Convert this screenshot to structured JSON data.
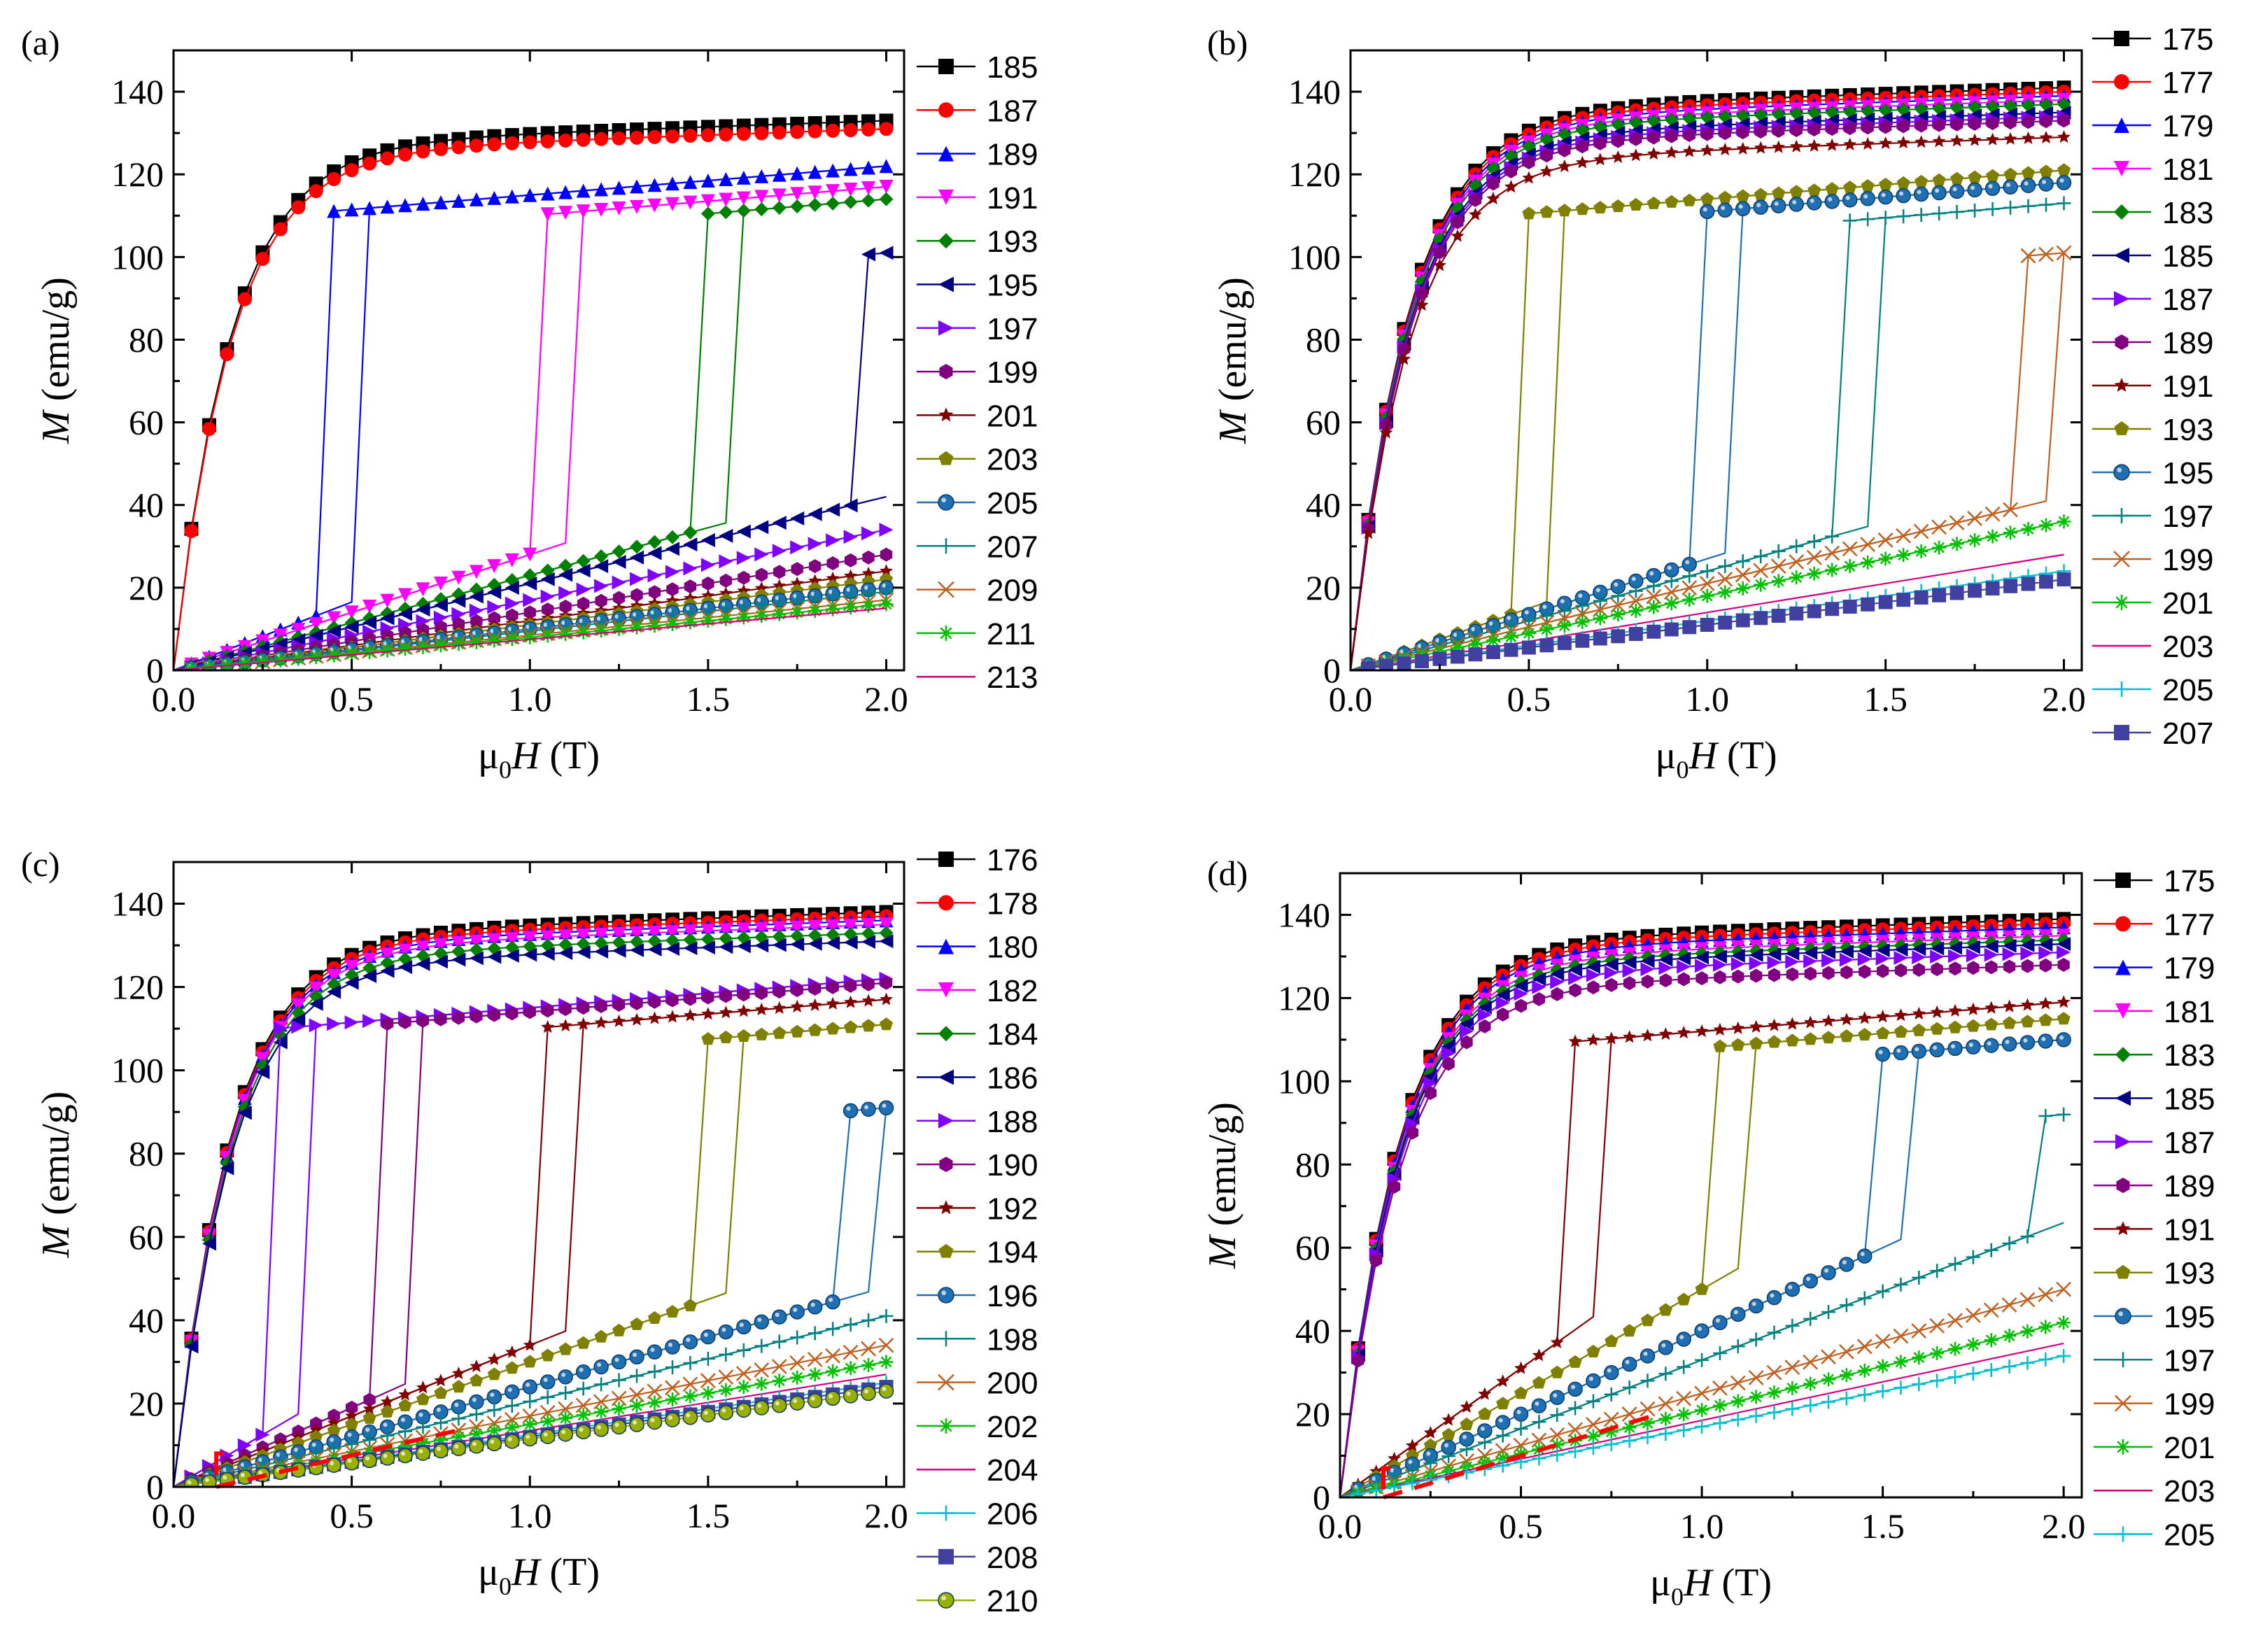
{
  "figure": {
    "colors": {
      "axis": "#000000",
      "annotation_dash": "#ff0000"
    }
  },
  "chart_data": [
    {
      "panel": "(a)",
      "type": "line",
      "xlabel_pre": "μ",
      "xlabel_sub": "0",
      "xlabel_var": "H",
      "xlabel_unit": " (T)",
      "ylabel_var": "M",
      "ylabel_unit": " (emu/g)",
      "xlim": [
        0,
        2.05
      ],
      "ylim": [
        0,
        150
      ],
      "xticks": [
        0,
        0.5,
        1.0,
        1.5,
        2.0
      ],
      "xtick_labels": [
        "0.0",
        "0.5",
        "1.0",
        "1.5",
        "2.0"
      ],
      "yticks": [
        0,
        20,
        40,
        60,
        80,
        100,
        120,
        140
      ],
      "ytick_labels": [
        "0",
        "20",
        "40",
        "60",
        "80",
        "100",
        "120",
        "140"
      ],
      "legend": [
        "185",
        "187",
        "189",
        "191",
        "193",
        "195",
        "197",
        "199",
        "201",
        "203",
        "205",
        "207",
        "209",
        "211",
        "213"
      ],
      "legend_placement": "right",
      "series": [
        {
          "name": "185",
          "marker": "square",
          "color": "#000000",
          "kind": "fm",
          "Msat": 127
        },
        {
          "name": "187",
          "marker": "circle",
          "color": "#ff0000",
          "kind": "fm",
          "Msat": 125
        },
        {
          "name": "189",
          "marker": "triangle-up",
          "color": "#0000ff",
          "kind": "trans",
          "Hc": 0.45,
          "slope": 33,
          "M2": 122
        },
        {
          "name": "191",
          "marker": "triangle-down",
          "color": "#ff00ff",
          "kind": "trans",
          "Hc": 1.05,
          "slope": 28,
          "M2": 117
        },
        {
          "name": "193",
          "marker": "diamond",
          "color": "#008000",
          "kind": "trans",
          "Hc": 1.5,
          "slope": 23,
          "M2": 114
        },
        {
          "name": "195",
          "marker": "triangle-left",
          "color": "#000080",
          "kind": "trans",
          "Hc": 1.92,
          "slope": 21,
          "M2": 101
        },
        {
          "name": "197",
          "marker": "triangle-right",
          "color": "#8000ff",
          "kind": "pm",
          "slope": 17
        },
        {
          "name": "199",
          "marker": "hexagon",
          "color": "#800080",
          "kind": "pm",
          "slope": 14
        },
        {
          "name": "201",
          "marker": "star",
          "color": "#800000",
          "kind": "pm",
          "slope": 12
        },
        {
          "name": "203",
          "marker": "pentagon",
          "color": "#808000",
          "kind": "pm",
          "slope": 11
        },
        {
          "name": "205",
          "marker": "ball",
          "color": "#1f6fb2",
          "kind": "pm",
          "slope": 10
        },
        {
          "name": "207",
          "marker": "plus",
          "color": "#008080",
          "kind": "pm",
          "slope": 9.5
        },
        {
          "name": "209",
          "marker": "cross",
          "color": "#c06020",
          "kind": "pm",
          "slope": 8.5
        },
        {
          "name": "211",
          "marker": "asterisk",
          "color": "#00c000",
          "kind": "pm",
          "slope": 8
        },
        {
          "name": "213",
          "marker": "dash",
          "color": "#d00080",
          "kind": "pm",
          "slope": 7.5
        }
      ]
    },
    {
      "panel": "(b)",
      "type": "line",
      "xlabel_pre": "μ",
      "xlabel_sub": "0",
      "xlabel_var": "H",
      "xlabel_unit": " (T)",
      "ylabel_var": "M",
      "ylabel_unit": " (emu/g)",
      "xlim": [
        0,
        2.05
      ],
      "ylim": [
        0,
        150
      ],
      "xticks": [
        0,
        0.5,
        1.0,
        1.5,
        2.0
      ],
      "xtick_labels": [
        "0.0",
        "0.5",
        "1.0",
        "1.5",
        "2.0"
      ],
      "yticks": [
        0,
        20,
        40,
        60,
        80,
        100,
        120,
        140
      ],
      "ytick_labels": [
        "0",
        "20",
        "40",
        "60",
        "80",
        "100",
        "120",
        "140"
      ],
      "legend": [
        "175",
        "177",
        "179",
        "181",
        "183",
        "185",
        "187",
        "189",
        "191",
        "193",
        "195",
        "197",
        "199",
        "201",
        "203",
        "205",
        "207"
      ],
      "legend_placement": "right",
      "series": [
        {
          "name": "175",
          "marker": "square",
          "color": "#000000",
          "kind": "fm",
          "Msat": 135
        },
        {
          "name": "177",
          "marker": "circle",
          "color": "#ff0000",
          "kind": "fm",
          "Msat": 134
        },
        {
          "name": "179",
          "marker": "triangle-up",
          "color": "#0000ff",
          "kind": "fm",
          "Msat": 133
        },
        {
          "name": "181",
          "marker": "triangle-down",
          "color": "#ff00ff",
          "kind": "fm",
          "Msat": 132
        },
        {
          "name": "183",
          "marker": "diamond",
          "color": "#008000",
          "kind": "fm",
          "Msat": 131
        },
        {
          "name": "185",
          "marker": "triangle-left",
          "color": "#000080",
          "kind": "fm",
          "Msat": 129
        },
        {
          "name": "187",
          "marker": "triangle-right",
          "color": "#8000ff",
          "kind": "fm",
          "Msat": 128
        },
        {
          "name": "189",
          "marker": "hexagon",
          "color": "#800080",
          "kind": "fm",
          "Msat": 127
        },
        {
          "name": "191",
          "marker": "star",
          "color": "#800000",
          "kind": "fm",
          "Msat": 123
        },
        {
          "name": "193",
          "marker": "pentagon",
          "color": "#808000",
          "kind": "trans",
          "Hc": 0.5,
          "slope": 30,
          "M2": 121
        },
        {
          "name": "195",
          "marker": "ball",
          "color": "#1f6fb2",
          "kind": "trans",
          "Hc": 0.97,
          "slope": 27,
          "M2": 118
        },
        {
          "name": "197",
          "marker": "plus",
          "color": "#008080",
          "kind": "trans",
          "Hc": 1.4,
          "slope": 24,
          "M2": 113
        },
        {
          "name": "199",
          "marker": "cross",
          "color": "#c06020",
          "kind": "trans",
          "Hc": 1.87,
          "slope": 21,
          "M2": 101
        },
        {
          "name": "201",
          "marker": "asterisk",
          "color": "#00c000",
          "kind": "pm",
          "slope": 18
        },
        {
          "name": "203",
          "marker": "dash",
          "color": "#d00080",
          "kind": "pm",
          "slope": 14
        },
        {
          "name": "205",
          "marker": "plus",
          "color": "#00bfd0",
          "kind": "pm",
          "slope": 12
        },
        {
          "name": "207",
          "marker": "square",
          "color": "#4040a0",
          "kind": "pm",
          "slope": 11
        }
      ]
    },
    {
      "panel": "(c)",
      "type": "line",
      "xlabel_pre": "μ",
      "xlabel_sub": "0",
      "xlabel_var": "H",
      "xlabel_unit": " (T)",
      "ylabel_var": "M",
      "ylabel_unit": " (emu/g)",
      "xlim": [
        0,
        2.05
      ],
      "ylim": [
        0,
        150
      ],
      "xticks": [
        0,
        0.5,
        1.0,
        1.5,
        2.0
      ],
      "xtick_labels": [
        "0.0",
        "0.5",
        "1.0",
        "1.5",
        "2.0"
      ],
      "yticks": [
        0,
        20,
        40,
        60,
        80,
        100,
        120,
        140
      ],
      "ytick_labels": [
        "0",
        "20",
        "40",
        "60",
        "80",
        "100",
        "120",
        "140"
      ],
      "legend": [
        "176",
        "178",
        "180",
        "182",
        "184",
        "186",
        "188",
        "190",
        "192",
        "194",
        "196",
        "198",
        "200",
        "202",
        "204",
        "206",
        "208",
        "210"
      ],
      "legend_placement": "right",
      "annotation": {
        "dashed_line_from": [
          0.12,
          0
        ],
        "dashed_line_to": [
          0.82,
          14
        ],
        "bracket_x": 0.12,
        "bracket_y": 8
      },
      "series": [
        {
          "name": "176",
          "marker": "square",
          "color": "#000000",
          "kind": "fm",
          "Msat": 132
        },
        {
          "name": "178",
          "marker": "circle",
          "color": "#ff0000",
          "kind": "fm",
          "Msat": 131
        },
        {
          "name": "180",
          "marker": "triangle-up",
          "color": "#0000ff",
          "kind": "fm",
          "Msat": 130
        },
        {
          "name": "182",
          "marker": "triangle-down",
          "color": "#ff00ff",
          "kind": "fm",
          "Msat": 129
        },
        {
          "name": "184",
          "marker": "diamond",
          "color": "#008000",
          "kind": "fm",
          "Msat": 127
        },
        {
          "name": "186",
          "marker": "triangle-left",
          "color": "#000080",
          "kind": "fm",
          "Msat": 125
        },
        {
          "name": "188",
          "marker": "triangle-right",
          "color": "#8000ff",
          "kind": "trans",
          "Hc": 0.28,
          "slope": 50,
          "M2": 122
        },
        {
          "name": "190",
          "marker": "hexagon",
          "color": "#800080",
          "kind": "trans",
          "Hc": 0.6,
          "slope": 38,
          "M2": 121
        },
        {
          "name": "192",
          "marker": "star",
          "color": "#800000",
          "kind": "trans",
          "Hc": 1.05,
          "slope": 34,
          "M2": 117
        },
        {
          "name": "194",
          "marker": "pentagon",
          "color": "#808000",
          "kind": "trans",
          "Hc": 1.47,
          "slope": 30,
          "M2": 111
        },
        {
          "name": "196",
          "marker": "ball",
          "color": "#1f6fb2",
          "kind": "trans",
          "Hc": 1.9,
          "slope": 24,
          "M2": 91
        },
        {
          "name": "198",
          "marker": "plus",
          "color": "#008080",
          "kind": "pm",
          "slope": 20.5
        },
        {
          "name": "200",
          "marker": "cross",
          "color": "#c06020",
          "kind": "pm",
          "slope": 17
        },
        {
          "name": "202",
          "marker": "asterisk",
          "color": "#00c000",
          "kind": "pm",
          "slope": 15
        },
        {
          "name": "204",
          "marker": "dash",
          "color": "#d00080",
          "kind": "pm",
          "slope": 13.5
        },
        {
          "name": "206",
          "marker": "plus",
          "color": "#00bfd0",
          "kind": "pm",
          "slope": 12.5
        },
        {
          "name": "208",
          "marker": "square",
          "color": "#4040a0",
          "kind": "pm",
          "slope": 12
        },
        {
          "name": "210",
          "marker": "ball",
          "color": "#9ab000",
          "kind": "pm",
          "slope": 11.5
        }
      ]
    },
    {
      "panel": "(d)",
      "type": "line",
      "xlabel_pre": "μ",
      "xlabel_sub": "0",
      "xlabel_var": "H",
      "xlabel_unit": " (T)",
      "ylabel_var": "M",
      "ylabel_unit": " (emu/g)",
      "xlim": [
        0,
        2.05
      ],
      "ylim": [
        0,
        150
      ],
      "xticks": [
        0,
        0.5,
        1.0,
        1.5,
        2.0
      ],
      "xtick_labels": [
        "0.0",
        "0.5",
        "1.0",
        "1.5",
        "2.0"
      ],
      "yticks": [
        0,
        20,
        40,
        60,
        80,
        100,
        120,
        140
      ],
      "ytick_labels": [
        "0",
        "20",
        "40",
        "60",
        "80",
        "100",
        "120",
        "140"
      ],
      "legend": [
        "175",
        "177",
        "179",
        "181",
        "183",
        "185",
        "187",
        "189",
        "191",
        "193",
        "195",
        "197",
        "199",
        "201",
        "203",
        "205"
      ],
      "legend_placement": "right",
      "annotation": {
        "dashed_line_from": [
          0.12,
          0
        ],
        "dashed_line_to": [
          0.88,
          20
        ],
        "bracket_x": 0.12,
        "bracket_y": 7
      },
      "series": [
        {
          "name": "175",
          "marker": "square",
          "color": "#000000",
          "kind": "fm",
          "Msat": 133
        },
        {
          "name": "177",
          "marker": "circle",
          "color": "#ff0000",
          "kind": "fm",
          "Msat": 132
        },
        {
          "name": "179",
          "marker": "triangle-up",
          "color": "#0000ff",
          "kind": "fm",
          "Msat": 131
        },
        {
          "name": "181",
          "marker": "triangle-down",
          "color": "#ff00ff",
          "kind": "fm",
          "Msat": 129
        },
        {
          "name": "183",
          "marker": "diamond",
          "color": "#008000",
          "kind": "fm",
          "Msat": 128
        },
        {
          "name": "185",
          "marker": "triangle-left",
          "color": "#000080",
          "kind": "fm",
          "Msat": 127
        },
        {
          "name": "187",
          "marker": "triangle-right",
          "color": "#8000ff",
          "kind": "fm",
          "Msat": 125
        },
        {
          "name": "189",
          "marker": "hexagon",
          "color": "#800080",
          "kind": "fm",
          "Msat": 122
        },
        {
          "name": "191",
          "marker": "star",
          "color": "#800000",
          "kind": "trans",
          "Hc": 0.62,
          "slope": 62,
          "M2": 119
        },
        {
          "name": "193",
          "marker": "pentagon",
          "color": "#808000",
          "kind": "trans",
          "Hc": 1.05,
          "slope": 50,
          "M2": 115
        },
        {
          "name": "195",
          "marker": "ball",
          "color": "#1f6fb2",
          "kind": "trans",
          "Hc": 1.5,
          "slope": 40,
          "M2": 110
        },
        {
          "name": "197",
          "marker": "plus",
          "color": "#008080",
          "kind": "trans",
          "Hc": 1.92,
          "slope": 33,
          "M2": 92
        },
        {
          "name": "199",
          "marker": "cross",
          "color": "#c06020",
          "kind": "pm",
          "slope": 25
        },
        {
          "name": "201",
          "marker": "asterisk",
          "color": "#00c000",
          "kind": "pm",
          "slope": 21
        },
        {
          "name": "203",
          "marker": "dash",
          "color": "#d00080",
          "kind": "pm",
          "slope": 18.5
        },
        {
          "name": "205",
          "marker": "plus",
          "color": "#00bfd0",
          "kind": "pm",
          "slope": 17
        }
      ]
    }
  ]
}
